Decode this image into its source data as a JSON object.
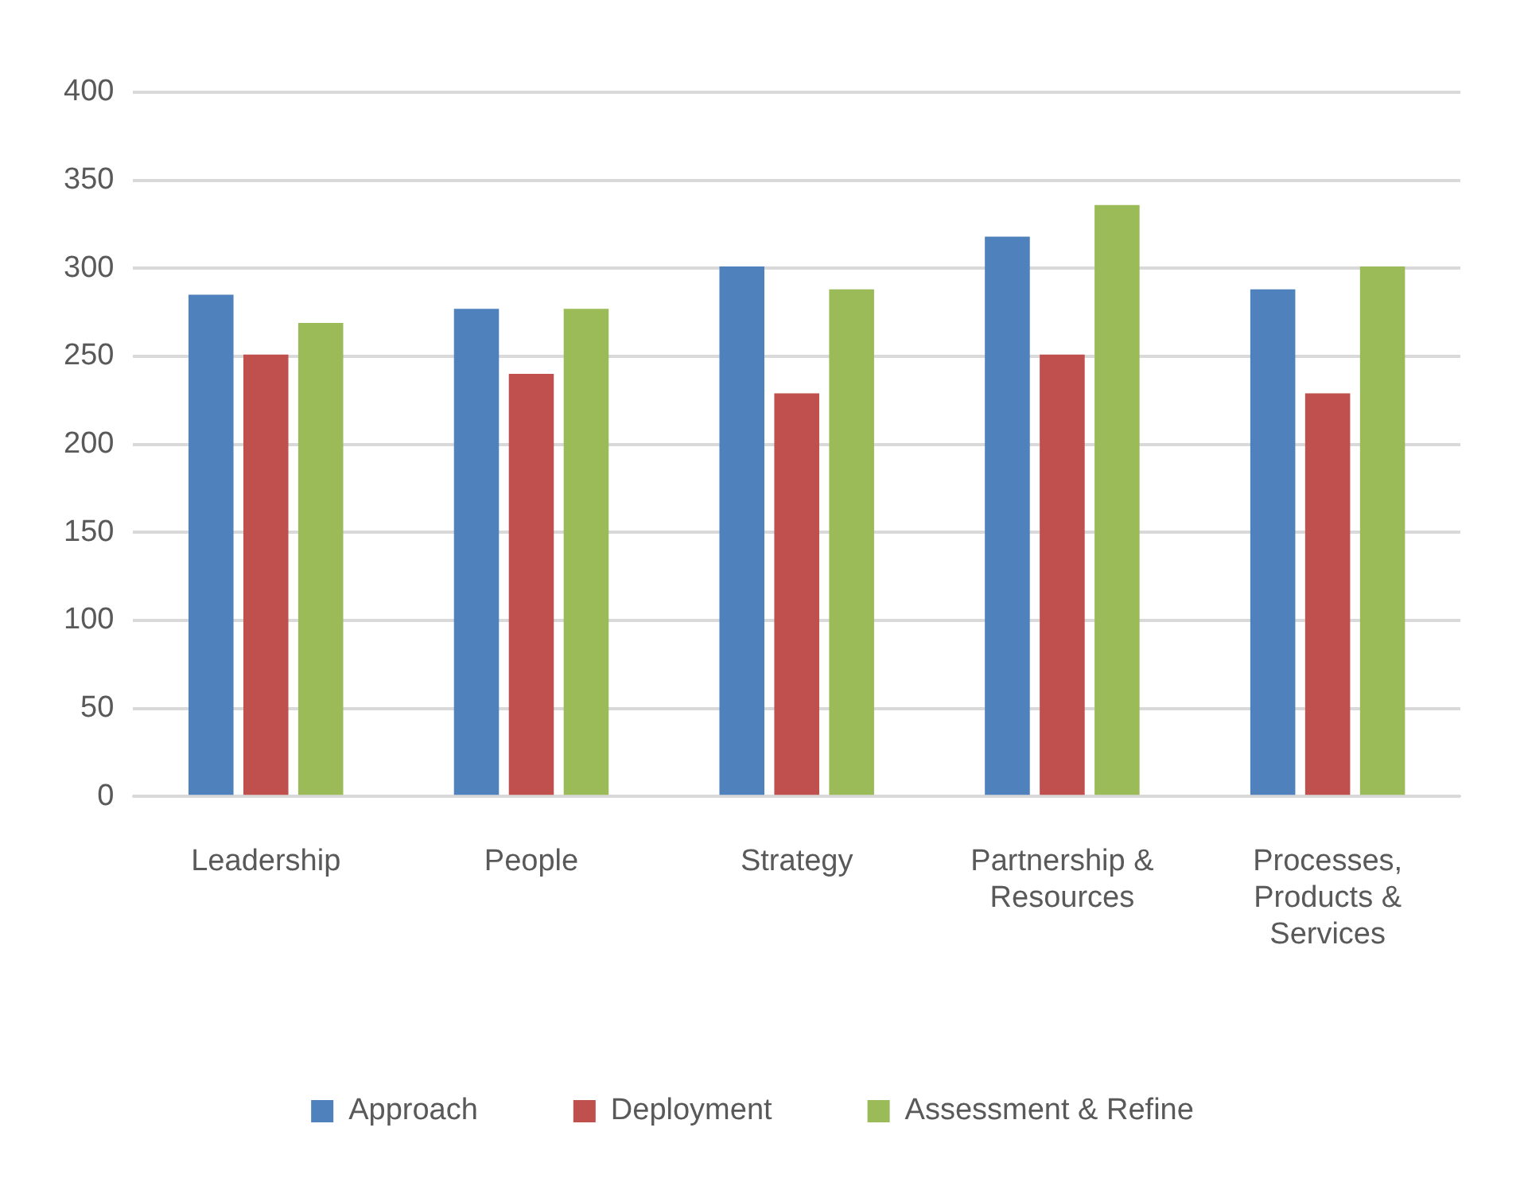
{
  "chart_data": {
    "type": "bar",
    "categories": [
      "Leadership",
      "People",
      "Strategy",
      "Partnership & Resources",
      "Processes, Products & Services"
    ],
    "series": [
      {
        "name": "Approach",
        "color": "#4f81bd",
        "values": [
          285,
          277,
          301,
          318,
          288
        ]
      },
      {
        "name": "Deployment",
        "color": "#c0504d",
        "values": [
          251,
          240,
          229,
          251,
          229
        ]
      },
      {
        "name": "Assessment & Refine",
        "color": "#9bbb59",
        "values": [
          269,
          277,
          288,
          336,
          301
        ]
      }
    ],
    "ylim": [
      0,
      400
    ],
    "yticks": [
      0,
      50,
      100,
      150,
      200,
      250,
      300,
      350,
      400
    ],
    "grid": "y",
    "legend": "bottom"
  }
}
